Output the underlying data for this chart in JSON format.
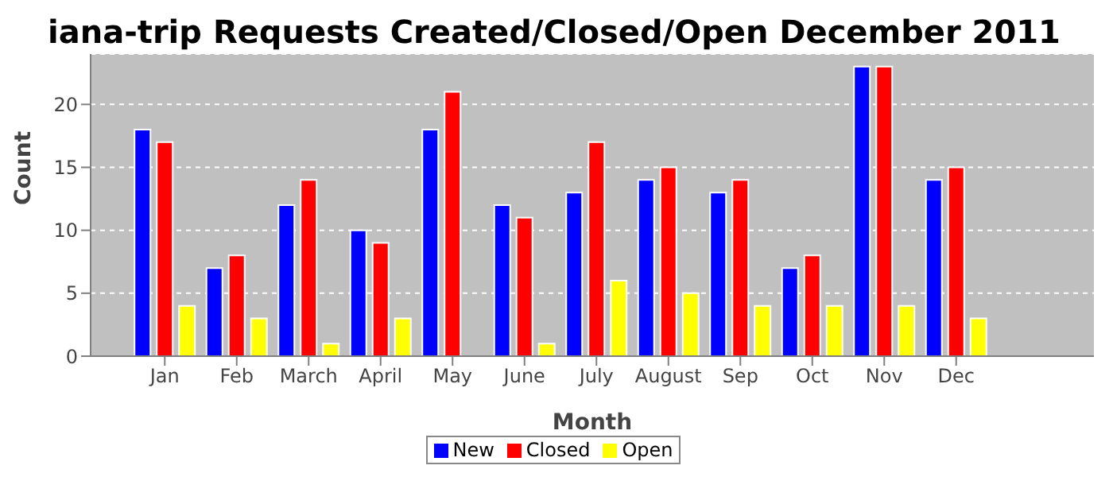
{
  "chart_data": {
    "type": "bar",
    "title": "iana-trip Requests Created/Closed/Open December 2011",
    "xlabel": "Month",
    "ylabel": "Count",
    "categories": [
      "Jan",
      "Feb",
      "March",
      "April",
      "May",
      "June",
      "July",
      "August",
      "Sep",
      "Oct",
      "Nov",
      "Dec"
    ],
    "series": [
      {
        "name": "New",
        "color": "#0000ff",
        "values": [
          18,
          7,
          12,
          10,
          18,
          12,
          13,
          14,
          13,
          7,
          23,
          14
        ]
      },
      {
        "name": "Closed",
        "color": "#ff0000",
        "values": [
          17,
          8,
          14,
          9,
          21,
          11,
          17,
          15,
          14,
          8,
          23,
          15
        ]
      },
      {
        "name": "Open",
        "color": "#ffff00",
        "values": [
          4,
          3,
          1,
          3,
          0,
          1,
          6,
          5,
          4,
          4,
          4,
          3
        ]
      }
    ],
    "ylim": [
      0,
      24
    ],
    "yticks": [
      0,
      5,
      10,
      15,
      20
    ],
    "grid": "y",
    "legend": "bottom"
  }
}
